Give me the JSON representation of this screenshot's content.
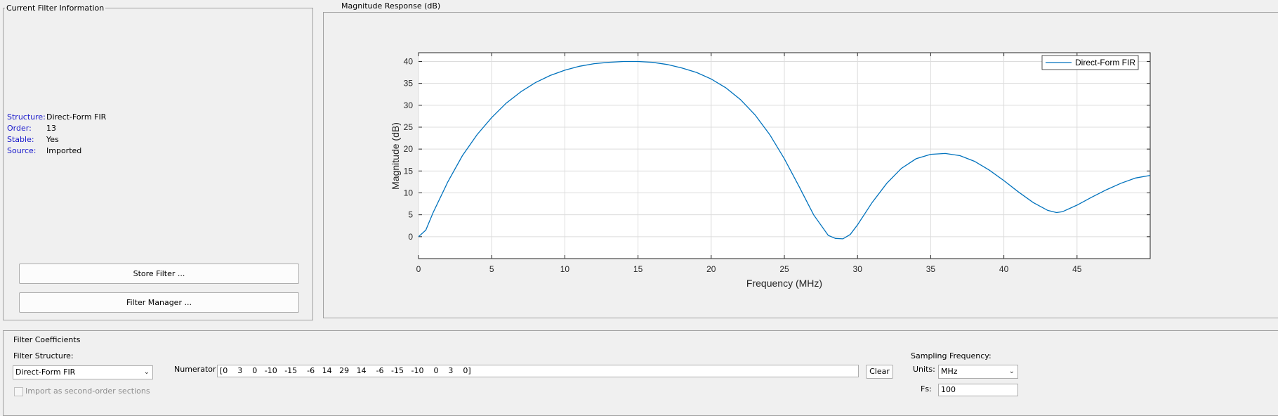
{
  "info_panel": {
    "title": "Current Filter Information",
    "rows": [
      {
        "key": "Structure:",
        "value": "Direct-Form FIR"
      },
      {
        "key": "Order:",
        "value": "13"
      },
      {
        "key": "Stable:",
        "value": "Yes"
      },
      {
        "key": "Source:",
        "value": "Imported"
      }
    ],
    "store_button": "Store Filter ...",
    "manager_button": "Filter Manager ..."
  },
  "response_panel": {
    "title": "Magnitude Response (dB)"
  },
  "chart_data": {
    "type": "line",
    "xlabel": "Frequency (MHz)",
    "ylabel": "Magnitude (dB)",
    "xlim": [
      0,
      50
    ],
    "ylim": [
      -5,
      42
    ],
    "xticks": [
      0,
      5,
      10,
      15,
      20,
      25,
      30,
      35,
      40,
      45
    ],
    "yticks": [
      0,
      5,
      10,
      15,
      20,
      25,
      30,
      35,
      40
    ],
    "grid": true,
    "legend_position": "top-right",
    "series": [
      {
        "name": "Direct-Form FIR",
        "color": "#0072bd",
        "x": [
          0,
          0.5,
          1,
          2,
          3,
          4,
          5,
          6,
          7,
          8,
          9,
          10,
          11,
          12,
          13,
          14,
          15,
          16,
          17,
          18,
          19,
          20,
          21,
          22,
          23,
          24,
          25,
          26,
          27,
          28,
          28.5,
          29,
          29.5,
          30,
          31,
          32,
          33,
          34,
          35,
          36,
          37,
          38,
          39,
          40,
          41,
          42,
          43,
          43.6,
          44,
          45,
          46,
          47,
          48,
          49,
          50
        ],
        "y": [
          0,
          1.5,
          5.5,
          12.5,
          18.5,
          23.3,
          27.2,
          30.5,
          33.1,
          35.2,
          36.8,
          38.0,
          38.9,
          39.5,
          39.8,
          40.0,
          40.0,
          39.8,
          39.3,
          38.5,
          37.5,
          36.0,
          34.0,
          31.3,
          27.8,
          23.3,
          17.8,
          11.5,
          5.0,
          0.3,
          -0.4,
          -0.5,
          0.5,
          2.7,
          7.8,
          12.2,
          15.6,
          17.8,
          18.8,
          19.0,
          18.5,
          17.2,
          15.2,
          12.8,
          10.2,
          7.8,
          6.0,
          5.5,
          5.7,
          7.2,
          9.0,
          10.7,
          12.2,
          13.4,
          14.0
        ]
      }
    ]
  },
  "coefficients_panel": {
    "title": "Filter Coefficients",
    "structure_label": "Filter Structure:",
    "structure_value": "Direct-Form FIR",
    "numerator_label": "Numerator",
    "numerator_value": "[0    3    0   -10   -15    -6   14   29   14    -6   -15   -10    0    3    0]",
    "clear_button": "Clear",
    "sos_checkbox_label": "Import as second-order sections",
    "sampling_label": "Sampling Frequency:",
    "units_label": "Units:",
    "units_value": "MHz",
    "fs_label": "Fs:",
    "fs_value": "100"
  }
}
